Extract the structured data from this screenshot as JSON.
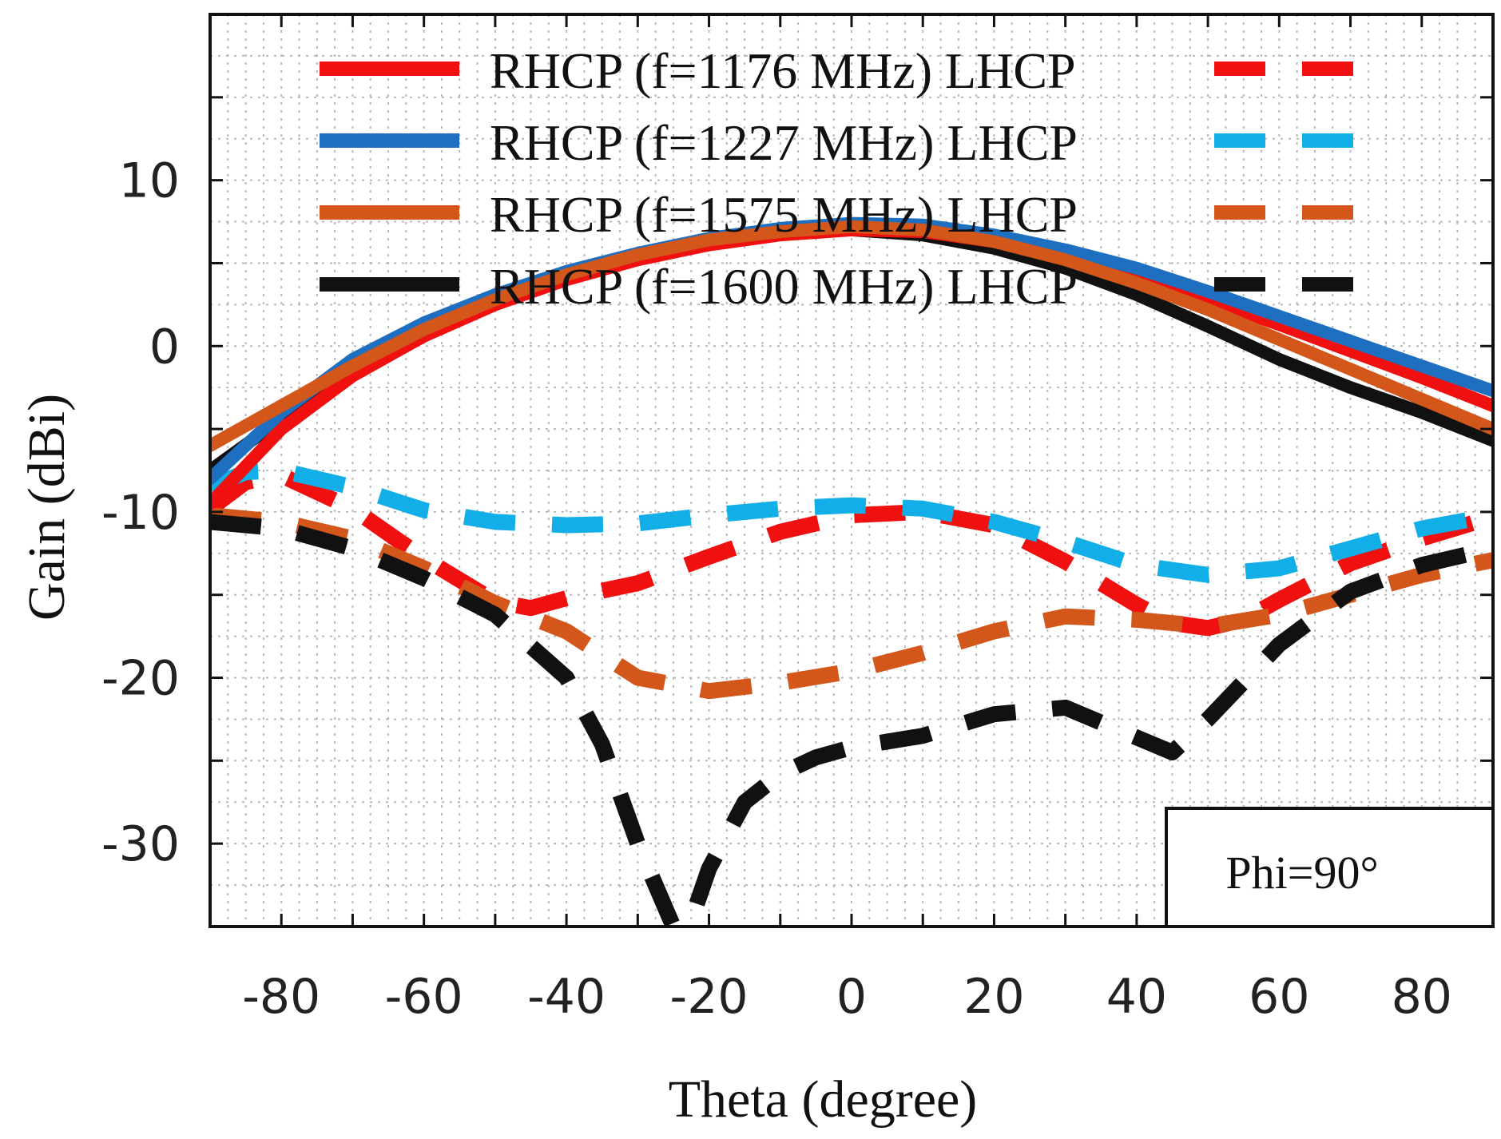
{
  "chart_data": {
    "type": "line",
    "xlabel": "Theta (degree)",
    "ylabel": "Gain (dBi)",
    "xlim": [
      -90,
      90
    ],
    "ylim": [
      -35,
      20
    ],
    "xticks": [
      -80,
      -60,
      -40,
      -20,
      0,
      20,
      40,
      60,
      80
    ],
    "yticks": [
      -30,
      -20,
      -10,
      0,
      10
    ],
    "grid": true,
    "legend_position": "top",
    "annotation": "Phi=90°",
    "legend": [
      {
        "text": "RHCP (f=1176 MHz) LHCP",
        "color": "#f01010"
      },
      {
        "text": "RHCP (f=1227 MHz) LHCP",
        "color_rhcp": "#1f6fc0",
        "color_lhcp": "#12aee8"
      },
      {
        "text": "RHCP (f=1575 MHz) LHCP",
        "color": "#d3571b"
      },
      {
        "text": "RHCP (f=1600 MHz) LHCP",
        "color": "#111111"
      }
    ],
    "series": [
      {
        "polarization": "RHCP",
        "frequency_mhz": 1600,
        "color": "#111111",
        "style": "solid",
        "x": [
          -90,
          -80,
          -70,
          -60,
          -50,
          -40,
          -30,
          -20,
          -10,
          0,
          10,
          20,
          30,
          40,
          50,
          60,
          70,
          80,
          90
        ],
        "y": [
          -7.5,
          -4.4,
          -1.7,
          0.7,
          2.6,
          4.2,
          5.4,
          6.3,
          6.9,
          7.0,
          6.7,
          5.9,
          4.7,
          3.1,
          1.2,
          -0.8,
          -2.5,
          -4.0,
          -5.7
        ]
      },
      {
        "polarization": "RHCP",
        "frequency_mhz": 1176,
        "color": "#f01010",
        "style": "solid",
        "x": [
          -90,
          -80,
          -70,
          -60,
          -50,
          -40,
          -30,
          -20,
          -10,
          0,
          10,
          20,
          30,
          40,
          50,
          60,
          70,
          80,
          90
        ],
        "y": [
          -9.5,
          -5.0,
          -1.8,
          0.6,
          2.5,
          4.0,
          5.2,
          6.1,
          6.7,
          7.0,
          6.9,
          6.3,
          5.4,
          4.2,
          2.8,
          1.3,
          -0.3,
          -1.9,
          -3.6
        ]
      },
      {
        "polarization": "RHCP",
        "frequency_mhz": 1227,
        "color": "#1f6fc0",
        "style": "solid",
        "x": [
          -90,
          -85,
          -80,
          -70,
          -60,
          -50,
          -40,
          -30,
          -20,
          -10,
          0,
          10,
          20,
          30,
          40,
          50,
          60,
          70,
          80,
          90
        ],
        "y": [
          -8.0,
          -6.0,
          -4.0,
          -0.8,
          1.4,
          3.1,
          4.5,
          5.6,
          6.5,
          7.1,
          7.4,
          7.3,
          6.7,
          5.8,
          4.7,
          3.3,
          1.8,
          0.3,
          -1.2,
          -2.7
        ]
      },
      {
        "polarization": "RHCP",
        "frequency_mhz": 1575,
        "color": "#d3571b",
        "style": "solid",
        "x": [
          -90,
          -80,
          -70,
          -60,
          -50,
          -40,
          -30,
          -20,
          -10,
          0,
          10,
          20,
          30,
          40,
          50,
          60,
          70,
          80,
          90
        ],
        "y": [
          -6.0,
          -3.6,
          -1.2,
          1.0,
          2.8,
          4.3,
          5.5,
          6.4,
          6.9,
          7.2,
          7.0,
          6.3,
          5.2,
          3.8,
          2.2,
          0.4,
          -1.4,
          -3.2,
          -5.0
        ]
      },
      {
        "polarization": "LHCP",
        "frequency_mhz": 1176,
        "color": "#f01010",
        "style": "dashed",
        "x": [
          -90,
          -85,
          -80,
          -70,
          -60,
          -50,
          -45,
          -40,
          -30,
          -20,
          -10,
          0,
          10,
          20,
          30,
          40,
          45,
          50,
          55,
          60,
          70,
          80,
          90
        ],
        "y": [
          -9.8,
          -8.2,
          -7.8,
          -9.8,
          -12.8,
          -15.4,
          -15.8,
          -15.2,
          -14.3,
          -12.7,
          -11.2,
          -10.2,
          -10.0,
          -10.8,
          -13.0,
          -15.6,
          -16.7,
          -17.0,
          -16.5,
          -15.3,
          -13.1,
          -11.6,
          -10.3
        ]
      },
      {
        "polarization": "LHCP",
        "frequency_mhz": 1227,
        "color": "#12aee8",
        "style": "dashed",
        "x": [
          -90,
          -85,
          -80,
          -75,
          -70,
          -60,
          -50,
          -40,
          -30,
          -20,
          -10,
          0,
          10,
          20,
          30,
          40,
          50,
          60,
          70,
          80,
          90
        ],
        "y": [
          -8.5,
          -7.6,
          -7.5,
          -8.0,
          -8.5,
          -9.9,
          -10.6,
          -10.8,
          -10.7,
          -10.2,
          -9.8,
          -9.6,
          -9.8,
          -10.6,
          -11.8,
          -13.2,
          -13.8,
          -13.4,
          -12.2,
          -11.0,
          -10.2
        ]
      },
      {
        "polarization": "LHCP",
        "frequency_mhz": 1575,
        "color": "#d3571b",
        "style": "dashed",
        "x": [
          -90,
          -80,
          -70,
          -60,
          -50,
          -40,
          -30,
          -20,
          -10,
          0,
          10,
          20,
          30,
          40,
          50,
          60,
          70,
          80,
          90
        ],
        "y": [
          -10.2,
          -10.6,
          -11.6,
          -13.4,
          -15.5,
          -17.2,
          -20.0,
          -20.8,
          -20.3,
          -19.6,
          -18.5,
          -17.2,
          -16.3,
          -16.5,
          -16.9,
          -16.2,
          -15.0,
          -13.8,
          -12.9
        ]
      },
      {
        "polarization": "LHCP",
        "frequency_mhz": 1600,
        "color": "#111111",
        "style": "dashed",
        "x": [
          -90,
          -80,
          -70,
          -60,
          -50,
          -40,
          -35,
          -30,
          -25,
          -22,
          -20,
          -15,
          -10,
          -5,
          0,
          10,
          20,
          30,
          40,
          45,
          50,
          60,
          70,
          80,
          90
        ],
        "y": [
          -10.6,
          -11.0,
          -12.2,
          -14.0,
          -16.2,
          -20.0,
          -24.0,
          -30.0,
          -35.0,
          -34.0,
          -31.5,
          -27.5,
          -25.8,
          -24.8,
          -24.2,
          -23.5,
          -22.2,
          -21.8,
          -23.6,
          -24.5,
          -22.5,
          -18.0,
          -14.8,
          -13.2,
          -12.2
        ]
      }
    ]
  }
}
